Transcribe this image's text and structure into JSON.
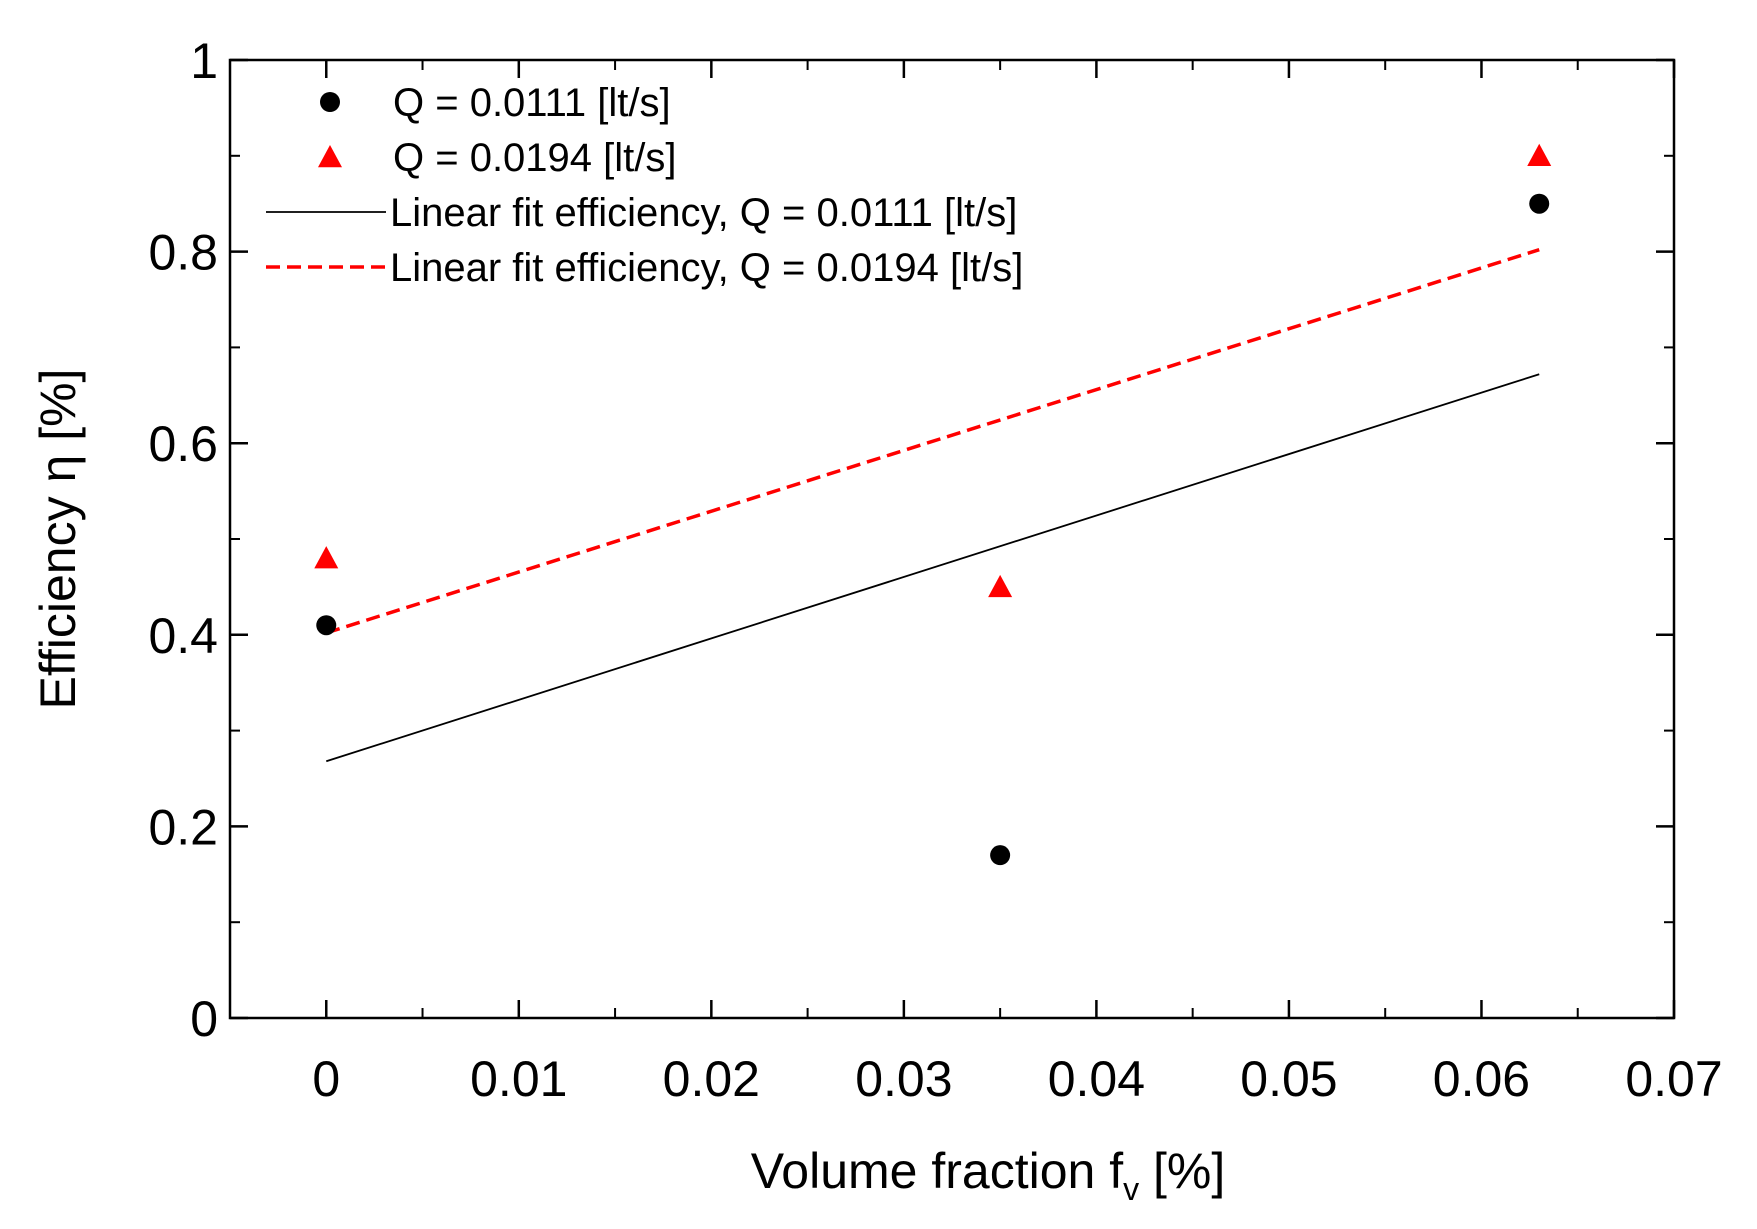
{
  "chart_data": {
    "type": "scatter",
    "title": "",
    "xlabel": "Volume fraction f",
    "xlabel_subscript": "v",
    "xlabel_unit": "[%]",
    "ylabel": "Efficiency η [%]",
    "xlim": [
      -0.005,
      0.07
    ],
    "ylim": [
      0,
      1
    ],
    "x_ticks": [
      0,
      0.01,
      0.02,
      0.03,
      0.04,
      0.05,
      0.06,
      0.07
    ],
    "x_tick_labels": [
      "0",
      "0.01",
      "0.02",
      "0.03",
      "0.04",
      "0.05",
      "0.06",
      "0.07"
    ],
    "y_ticks": [
      0,
      0.2,
      0.4,
      0.6,
      0.8,
      1
    ],
    "y_tick_labels": [
      "0",
      "0.2",
      "0.4",
      "0.6",
      "0.8",
      "1"
    ],
    "grid": false,
    "legend_position": "top-left",
    "series": [
      {
        "name": "Q = 0.0111 [lt/s]",
        "kind": "scatter",
        "marker": "circle",
        "color": "#000000",
        "x": [
          0,
          0.035,
          0.063
        ],
        "y": [
          0.41,
          0.17,
          0.85
        ]
      },
      {
        "name": "Q = 0.0194 [lt/s]",
        "kind": "scatter",
        "marker": "triangle",
        "color": "#ff0000",
        "x": [
          0,
          0.035,
          0.063
        ],
        "y": [
          0.48,
          0.45,
          0.9
        ]
      },
      {
        "name": "Linear fit efficiency, Q = 0.0111 [lt/s]",
        "kind": "line",
        "style": "solid",
        "color": "#000000",
        "x": [
          0,
          0.063
        ],
        "y": [
          0.268,
          0.672
        ]
      },
      {
        "name": "Linear fit efficiency, Q = 0.0194 [lt/s]",
        "kind": "line",
        "style": "dashed",
        "color": "#ff0000",
        "x": [
          0,
          0.063
        ],
        "y": [
          0.402,
          0.802
        ]
      }
    ]
  }
}
